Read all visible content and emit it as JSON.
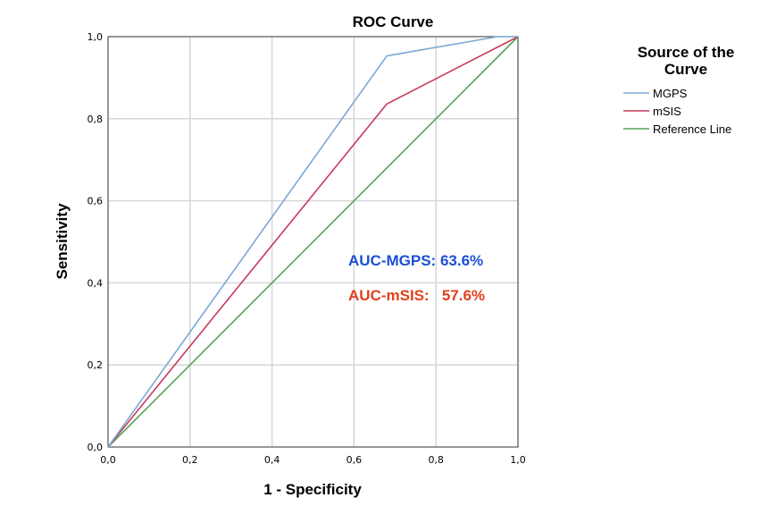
{
  "chart_data": {
    "type": "line",
    "title": "ROC Curve",
    "xlabel": "1 - Specificity",
    "ylabel": "Sensitivity",
    "xlim": [
      0,
      1
    ],
    "ylim": [
      0,
      1
    ],
    "grid": true,
    "x_ticks": [
      "0,0",
      "0,2",
      "0,4",
      "0,6",
      "0,8",
      "1,0"
    ],
    "y_ticks": [
      "0,0",
      "0,2",
      "0,4",
      "0,6",
      "0,8",
      "1,0"
    ],
    "legend": {
      "title_lines": [
        "Source of the",
        "Curve"
      ],
      "placement": "right"
    },
    "series": [
      {
        "name": "MGPS",
        "color": "#7aa9d6",
        "x": [
          0,
          0.68,
          0.95,
          1.0
        ],
        "y": [
          0,
          0.953,
          1.0,
          1.0
        ]
      },
      {
        "name": "mSIS",
        "color": "#c8385a",
        "x": [
          0,
          0.68,
          1.0
        ],
        "y": [
          0,
          0.836,
          1.0
        ]
      },
      {
        "name": "Reference Line",
        "color": "#5aa05a",
        "x": [
          0,
          1.0
        ],
        "y": [
          0,
          1.0
        ]
      }
    ],
    "annotations": [
      {
        "text": "AUC-MGPS: 63.6%",
        "color": "#1a4fd6"
      },
      {
        "text": "AUC-mSIS:   57.6%",
        "color": "#e0401c"
      }
    ]
  }
}
